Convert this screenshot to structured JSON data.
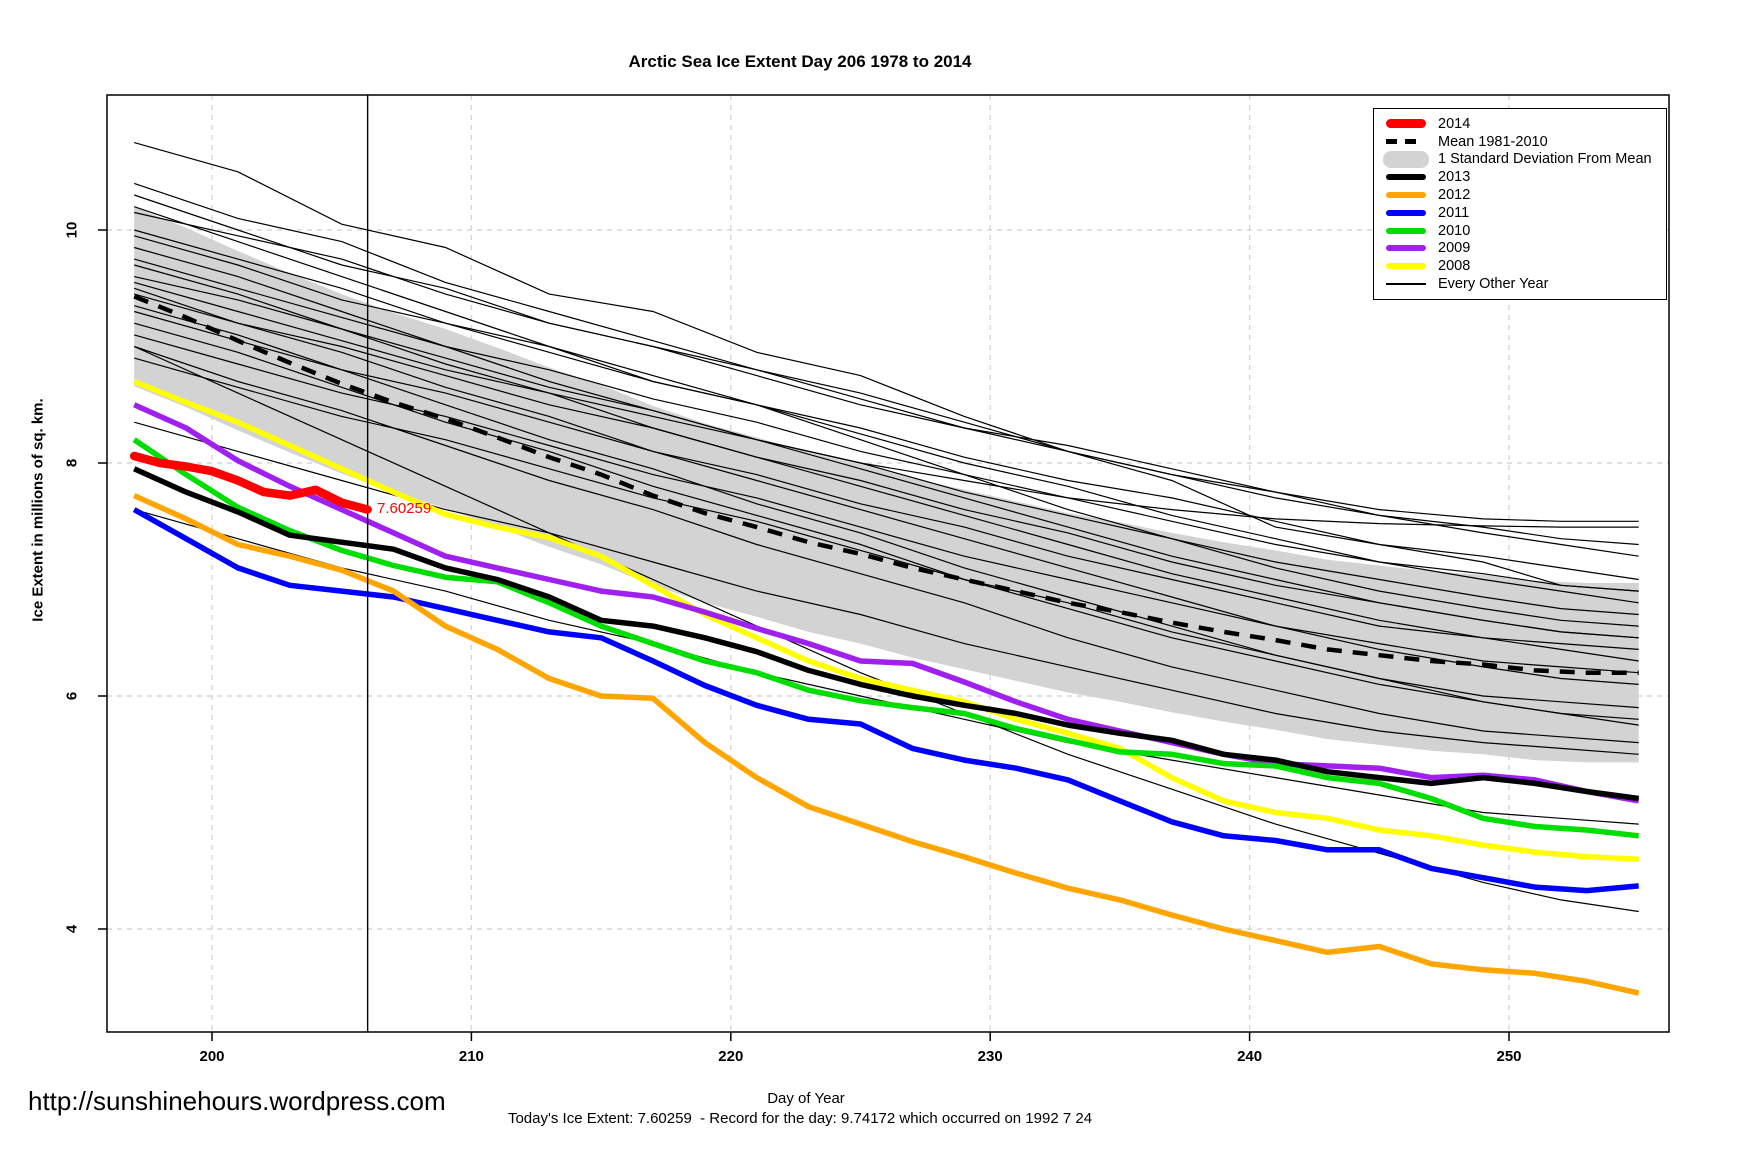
{
  "title": "Arctic Sea Ice Extent Day 206 1978 to 2014",
  "footer": {
    "url": "http://sunshinehours.wordpress.com",
    "status": "Today's Ice Extent: 7.60259  - Record for the day: 9.74172 which occurred on 1992 7 24"
  },
  "colors": {
    "grid": "#d6d6d6",
    "axis": "#000000",
    "background": "#ffffff",
    "band": "#d3d3d3",
    "current_year": "#ff0000"
  },
  "legend": {
    "position": "top-right",
    "items": [
      {
        "label": "2014",
        "swatch": "thick-line",
        "color": "#ff0000"
      },
      {
        "label": "Mean 1981-2010",
        "swatch": "dashed-line",
        "color": "#000000"
      },
      {
        "label": "1 Standard Deviation From Mean",
        "swatch": "band",
        "color": "#d3d3d3"
      },
      {
        "label": "2013",
        "swatch": "line",
        "color": "#000000"
      },
      {
        "label": "2012",
        "swatch": "line",
        "color": "#ffa500"
      },
      {
        "label": "2011",
        "swatch": "line",
        "color": "#0000ff"
      },
      {
        "label": "2010",
        "swatch": "line",
        "color": "#00dd00"
      },
      {
        "label": "2009",
        "swatch": "line",
        "color": "#a020f0"
      },
      {
        "label": "2008",
        "swatch": "line",
        "color": "#ffff00"
      },
      {
        "label": "Every Other Year",
        "swatch": "thin-line",
        "color": "#000000"
      }
    ]
  },
  "chart_data": {
    "type": "line",
    "title": "Arctic Sea Ice Extent Day 206 1978 to 2014",
    "xlabel": "Day of Year",
    "ylabel": "Ice Extent in millions of sq. km.",
    "xlim": [
      195.95,
      256.2
    ],
    "ylim": [
      3.12,
      11.16
    ],
    "xticks": [
      200,
      210,
      220,
      230,
      240,
      250
    ],
    "yticks": [
      4,
      6,
      8,
      10
    ],
    "grid": true,
    "vline": {
      "x": 206
    },
    "annotation": {
      "text": "7.60259",
      "day": 206,
      "value": 7.60259,
      "color": "#ff0000"
    },
    "x": [
      197,
      199,
      201,
      203,
      205,
      207,
      209,
      211,
      213,
      215,
      217,
      219,
      221,
      223,
      225,
      227,
      229,
      231,
      233,
      235,
      237,
      239,
      241,
      243,
      245,
      247,
      249,
      251,
      253,
      255
    ],
    "band": {
      "name": "1 Standard Deviation From Mean",
      "color": "#d3d3d3",
      "x": [
        197,
        199,
        201,
        203,
        205,
        207,
        209,
        211,
        213,
        215,
        217,
        219,
        221,
        223,
        225,
        227,
        229,
        231,
        233,
        235,
        237,
        239,
        241,
        243,
        245,
        247,
        249,
        251,
        253,
        255
      ],
      "upper": [
        10.2,
        10.02,
        9.82,
        9.63,
        9.45,
        9.29,
        9.15,
        8.99,
        8.82,
        8.67,
        8.49,
        8.34,
        8.22,
        8.09,
        7.99,
        7.87,
        7.77,
        7.67,
        7.57,
        7.49,
        7.4,
        7.32,
        7.25,
        7.17,
        7.12,
        7.07,
        7.04,
        6.99,
        6.97,
        6.97
      ],
      "lower": [
        8.66,
        8.48,
        8.28,
        8.09,
        7.91,
        7.75,
        7.61,
        7.45,
        7.28,
        7.13,
        6.95,
        6.8,
        6.68,
        6.55,
        6.45,
        6.33,
        6.23,
        6.13,
        6.03,
        5.95,
        5.86,
        5.78,
        5.71,
        5.63,
        5.58,
        5.53,
        5.5,
        5.45,
        5.43,
        5.43
      ]
    },
    "mean": {
      "name": "Mean 1981-2010",
      "color": "#000000",
      "values": [
        9.43,
        9.25,
        9.05,
        8.86,
        8.68,
        8.52,
        8.38,
        8.22,
        8.05,
        7.9,
        7.72,
        7.57,
        7.45,
        7.32,
        7.22,
        7.1,
        7.0,
        6.9,
        6.8,
        6.72,
        6.63,
        6.55,
        6.48,
        6.4,
        6.35,
        6.3,
        6.27,
        6.22,
        6.2,
        6.2
      ]
    },
    "series": [
      {
        "name": "2013",
        "color": "#000000",
        "values": [
          7.95,
          7.75,
          7.58,
          7.38,
          7.32,
          7.26,
          7.1,
          7.0,
          6.85,
          6.65,
          6.6,
          6.5,
          6.38,
          6.22,
          6.1,
          6.0,
          5.92,
          5.85,
          5.75,
          5.68,
          5.62,
          5.5,
          5.45,
          5.35,
          5.3,
          5.25,
          5.3,
          5.25,
          5.18,
          5.12
        ]
      },
      {
        "name": "2012",
        "color": "#ffa500",
        "values": [
          7.72,
          7.52,
          7.3,
          7.2,
          7.08,
          6.9,
          6.6,
          6.4,
          6.15,
          6.0,
          5.98,
          5.6,
          5.3,
          5.05,
          4.9,
          4.75,
          4.62,
          4.48,
          4.35,
          4.25,
          4.12,
          4.0,
          3.9,
          3.8,
          3.85,
          3.7,
          3.65,
          3.62,
          3.55,
          3.45
        ]
      },
      {
        "name": "2011",
        "color": "#0000ff",
        "values": [
          7.6,
          7.35,
          7.1,
          6.95,
          6.9,
          6.85,
          6.75,
          6.65,
          6.55,
          6.5,
          6.3,
          6.09,
          5.92,
          5.8,
          5.76,
          5.55,
          5.45,
          5.38,
          5.28,
          5.1,
          4.92,
          4.8,
          4.76,
          4.68,
          4.68,
          4.52,
          4.44,
          4.36,
          4.33,
          4.37
        ]
      },
      {
        "name": "2010",
        "color": "#00dd00",
        "values": [
          8.2,
          7.9,
          7.62,
          7.42,
          7.25,
          7.12,
          7.02,
          6.98,
          6.8,
          6.6,
          6.45,
          6.3,
          6.2,
          6.05,
          5.96,
          5.9,
          5.85,
          5.72,
          5.62,
          5.52,
          5.5,
          5.42,
          5.4,
          5.3,
          5.25,
          5.12,
          4.95,
          4.88,
          4.85,
          4.8
        ]
      },
      {
        "name": "2009",
        "color": "#a020f0",
        "values": [
          8.5,
          8.3,
          8.02,
          7.8,
          7.6,
          7.4,
          7.2,
          7.1,
          7.0,
          6.9,
          6.85,
          6.72,
          6.58,
          6.45,
          6.3,
          6.28,
          6.12,
          5.95,
          5.8,
          5.7,
          5.6,
          5.5,
          5.42,
          5.4,
          5.38,
          5.3,
          5.32,
          5.28,
          5.18,
          5.1
        ]
      },
      {
        "name": "2008",
        "color": "#ffff00",
        "values": [
          8.7,
          8.52,
          8.35,
          8.15,
          7.95,
          7.75,
          7.56,
          7.45,
          7.36,
          7.2,
          6.95,
          6.7,
          6.5,
          6.3,
          6.15,
          6.05,
          5.95,
          5.8,
          5.68,
          5.55,
          5.3,
          5.1,
          5.0,
          4.95,
          4.85,
          4.8,
          4.72,
          4.66,
          4.62,
          4.6
        ]
      }
    ],
    "current": {
      "name": "2014",
      "color": "#ff0000",
      "x": [
        197,
        198,
        199,
        200,
        201,
        202,
        203,
        204,
        205,
        206
      ],
      "values": [
        8.06,
        8.0,
        7.97,
        7.93,
        7.85,
        7.75,
        7.72,
        7.77,
        7.66,
        7.6
      ]
    },
    "background_series": {
      "name": "Every Other Year",
      "color": "#000000",
      "x": [
        197,
        201,
        205,
        209,
        213,
        217,
        221,
        225,
        229,
        233,
        237,
        241,
        245,
        249,
        252,
        255
      ],
      "lines": [
        [
          10.75,
          10.5,
          10.05,
          9.85,
          9.45,
          9.3,
          8.95,
          8.75,
          8.4,
          8.1,
          7.85,
          7.45,
          7.3,
          7.15,
          6.95,
          6.9
        ],
        [
          10.4,
          10.1,
          9.9,
          9.55,
          9.3,
          9.05,
          8.8,
          8.6,
          8.35,
          8.1,
          7.9,
          7.7,
          7.55,
          7.45,
          7.35,
          7.3
        ],
        [
          10.3,
          10.0,
          9.7,
          9.5,
          9.2,
          9.0,
          8.75,
          8.5,
          8.3,
          8.1,
          7.9,
          7.75,
          7.6,
          7.52,
          7.5,
          7.5
        ],
        [
          10.2,
          9.9,
          9.6,
          9.3,
          9.0,
          8.75,
          8.5,
          8.2,
          7.9,
          7.6,
          7.35,
          7.1,
          6.9,
          6.75,
          6.65,
          6.6
        ],
        [
          10.15,
          9.95,
          9.75,
          9.45,
          9.2,
          9.0,
          8.8,
          8.55,
          8.3,
          8.15,
          7.95,
          7.75,
          7.55,
          7.4,
          7.3,
          7.2
        ],
        [
          10.0,
          9.75,
          9.5,
          9.2,
          9.0,
          8.7,
          8.5,
          8.25,
          8.0,
          7.8,
          7.55,
          7.35,
          7.15,
          7.0,
          6.9,
          6.8
        ],
        [
          9.95,
          9.7,
          9.4,
          9.2,
          8.95,
          8.7,
          8.5,
          8.3,
          8.05,
          7.85,
          7.7,
          7.5,
          7.3,
          7.2,
          7.1,
          7.0
        ],
        [
          9.85,
          9.6,
          9.3,
          9.0,
          8.7,
          8.45,
          8.2,
          7.95,
          7.7,
          7.45,
          7.2,
          7.0,
          6.8,
          6.65,
          6.55,
          6.5
        ],
        [
          9.75,
          9.5,
          9.25,
          9.0,
          8.8,
          8.55,
          8.35,
          8.1,
          7.9,
          7.7,
          7.5,
          7.3,
          7.15,
          7.05,
          6.95,
          6.9
        ],
        [
          9.7,
          9.45,
          9.15,
          8.85,
          8.6,
          8.3,
          8.05,
          7.8,
          7.55,
          7.3,
          7.05,
          6.85,
          6.65,
          6.5,
          6.4,
          6.3
        ],
        [
          9.6,
          9.4,
          9.15,
          8.9,
          8.65,
          8.45,
          8.2,
          8.0,
          7.75,
          7.55,
          7.35,
          7.15,
          7.0,
          6.85,
          6.75,
          6.7
        ],
        [
          9.55,
          9.3,
          9.05,
          8.8,
          8.6,
          8.4,
          8.2,
          8.0,
          7.85,
          7.7,
          7.6,
          7.52,
          7.48,
          7.46,
          7.45,
          7.45
        ],
        [
          9.5,
          9.2,
          8.95,
          8.65,
          8.4,
          8.1,
          7.85,
          7.6,
          7.35,
          7.1,
          6.85,
          6.6,
          6.4,
          6.25,
          6.15,
          6.1
        ],
        [
          9.45,
          9.2,
          9.0,
          8.75,
          8.5,
          8.3,
          8.05,
          7.85,
          7.6,
          7.4,
          7.15,
          6.95,
          6.8,
          6.65,
          6.55,
          6.5
        ],
        [
          9.35,
          9.1,
          8.8,
          8.5,
          8.2,
          7.95,
          7.65,
          7.4,
          7.1,
          6.85,
          6.6,
          6.35,
          6.15,
          6.0,
          5.95,
          5.9
        ],
        [
          9.3,
          9.05,
          8.8,
          8.6,
          8.35,
          8.1,
          7.9,
          7.65,
          7.45,
          7.2,
          7.0,
          6.8,
          6.6,
          6.5,
          6.45,
          6.4
        ],
        [
          9.2,
          8.95,
          8.65,
          8.35,
          8.1,
          7.8,
          7.55,
          7.3,
          7.0,
          6.75,
          6.5,
          6.3,
          6.1,
          5.95,
          5.85,
          5.8
        ],
        [
          9.1,
          8.85,
          8.6,
          8.4,
          8.15,
          7.9,
          7.7,
          7.45,
          7.2,
          7.0,
          6.8,
          6.6,
          6.45,
          6.3,
          6.25,
          6.2
        ],
        [
          9.0,
          8.7,
          8.45,
          8.15,
          7.85,
          7.6,
          7.3,
          7.05,
          6.8,
          6.5,
          6.25,
          6.05,
          5.85,
          5.7,
          5.65,
          5.6
        ],
        [
          9.0,
          8.6,
          8.2,
          7.8,
          7.4,
          7.0,
          6.6,
          6.2,
          5.85,
          5.5,
          5.2,
          4.9,
          4.65,
          4.4,
          4.25,
          4.15
        ],
        [
          8.9,
          8.65,
          8.4,
          8.2,
          7.95,
          7.7,
          7.5,
          7.25,
          7.0,
          6.8,
          6.55,
          6.35,
          6.15,
          5.95,
          5.85,
          5.75
        ],
        [
          8.35,
          8.1,
          7.85,
          7.6,
          7.4,
          7.15,
          6.9,
          6.7,
          6.45,
          6.25,
          6.05,
          5.85,
          5.7,
          5.6,
          5.55,
          5.5
        ],
        [
          7.6,
          7.35,
          7.1,
          6.9,
          6.65,
          6.45,
          6.2,
          6.0,
          5.8,
          5.6,
          5.45,
          5.3,
          5.15,
          5.0,
          4.95,
          4.9
        ]
      ]
    }
  }
}
